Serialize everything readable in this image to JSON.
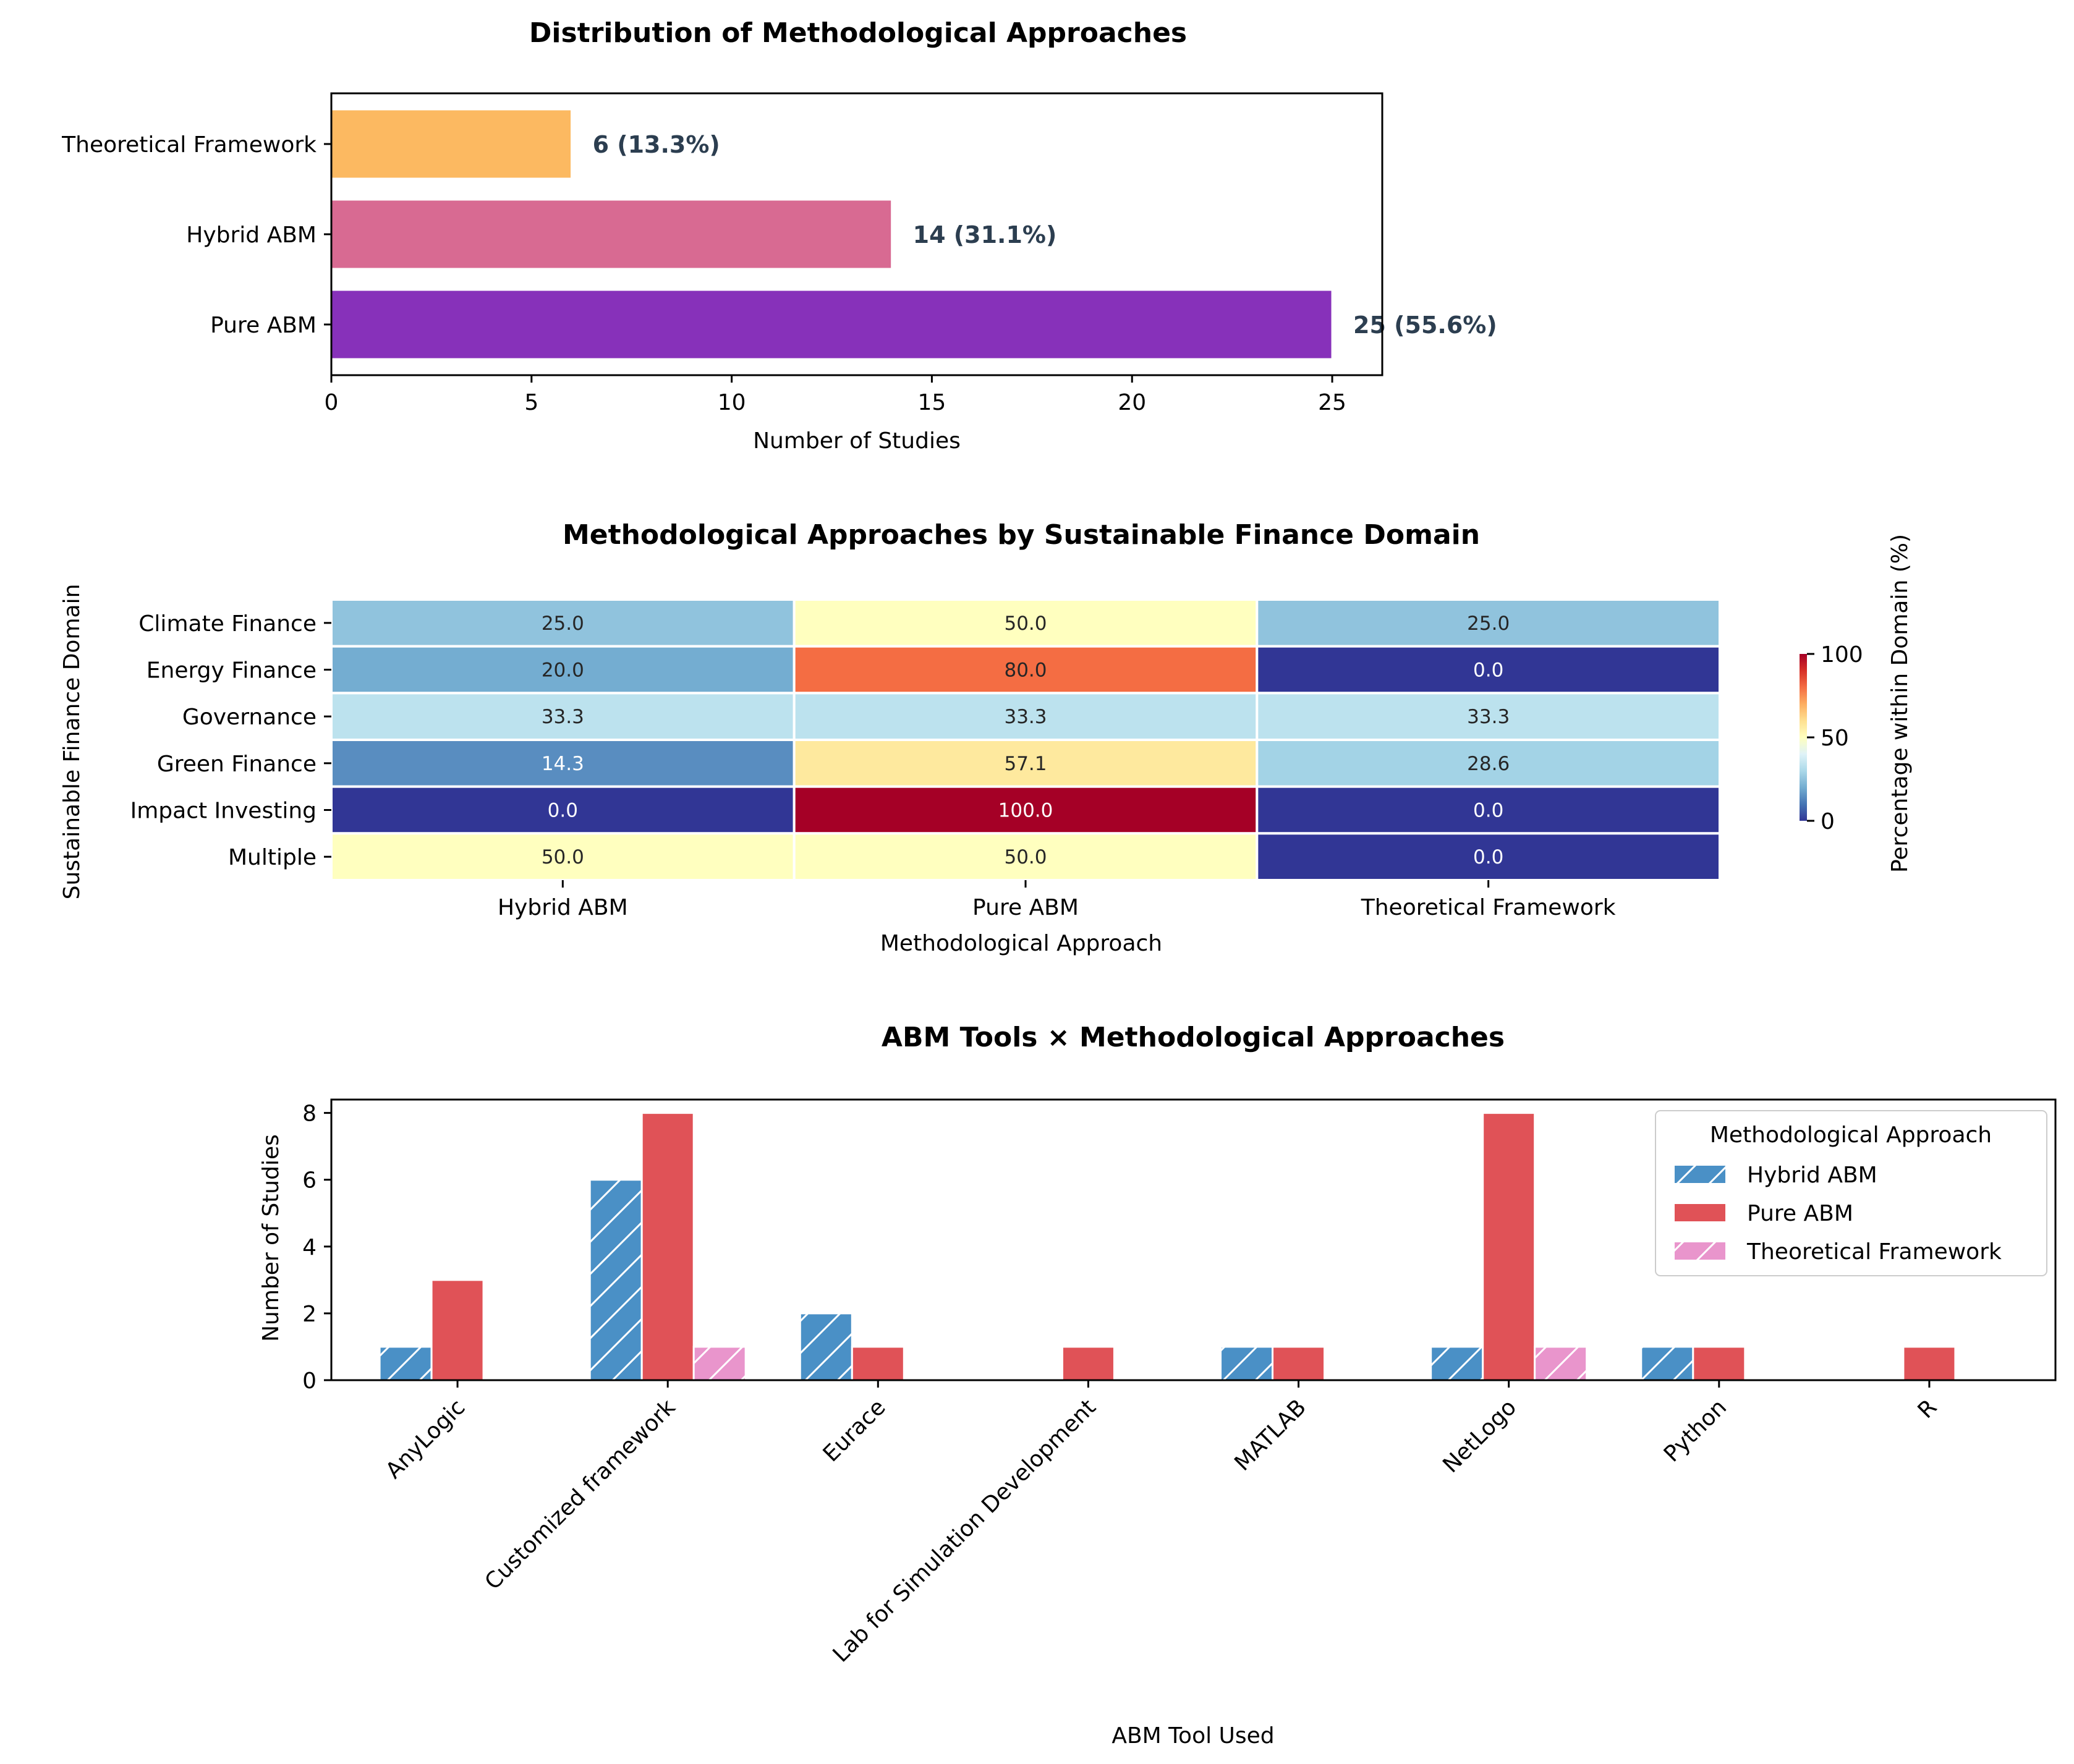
{
  "chart_data": [
    {
      "type": "bar",
      "orientation": "horizontal",
      "title": "Distribution of Methodological Approaches",
      "xlabel": "Number of Studies",
      "ylabel": "",
      "categories": [
        "Pure ABM",
        "Hybrid ABM",
        "Theoretical Framework"
      ],
      "values": [
        25,
        14,
        6
      ],
      "bar_labels": [
        "25 (55.6%)",
        "14 (31.1%)",
        "6 (13.3%)"
      ],
      "colors": [
        "#8731BA",
        "#D86A92",
        "#FCB961"
      ],
      "xlim": [
        0,
        26.25
      ],
      "xticks": [
        "0",
        "5",
        "10",
        "15",
        "20",
        "25"
      ]
    },
    {
      "type": "heatmap",
      "title": "Methodological Approaches by Sustainable Finance Domain",
      "xlabel": "Methodological Approach",
      "ylabel": "Sustainable Finance Domain",
      "x": [
        "Hybrid ABM",
        "Pure ABM",
        "Theoretical Framework"
      ],
      "y": [
        "Climate Finance",
        "Energy Finance",
        "Governance",
        "Green Finance",
        "Impact Investing",
        "Multiple"
      ],
      "values": [
        [
          25.0,
          50.0,
          25.0
        ],
        [
          20.0,
          80.0,
          0.0
        ],
        [
          33.3,
          33.3,
          33.3
        ],
        [
          14.3,
          57.1,
          28.6
        ],
        [
          0.0,
          100.0,
          0.0
        ],
        [
          50.0,
          50.0,
          0.0
        ]
      ],
      "cell_labels": [
        [
          "25.0",
          "50.0",
          "25.0"
        ],
        [
          "20.0",
          "80.0",
          "0.0"
        ],
        [
          "33.3",
          "33.3",
          "33.3"
        ],
        [
          "14.3",
          "57.1",
          "28.6"
        ],
        [
          "0.0",
          "100.0",
          "0.0"
        ],
        [
          "50.0",
          "50.0",
          "0.0"
        ]
      ],
      "colormap": "RdYlBu_r",
      "colorbar": {
        "label": "Percentage within Domain (%)",
        "range": [
          0,
          100
        ],
        "ticks": [
          "0",
          "50",
          "100"
        ]
      }
    },
    {
      "type": "bar",
      "title": "ABM Tools × Methodological Approaches",
      "xlabel": "ABM Tool Used",
      "ylabel": "Number of Studies",
      "categories": [
        "AnyLogic",
        "Customized framework",
        "Eurace",
        "Lab for Simulation Development",
        "MATLAB",
        "NetLogo",
        "Python",
        "R"
      ],
      "series": [
        {
          "name": "Hybrid ABM",
          "values": [
            1,
            6,
            2,
            0,
            1,
            1,
            1,
            0
          ],
          "color": "#4A90C6",
          "hatch": "diagonal"
        },
        {
          "name": "Pure ABM",
          "values": [
            3,
            8,
            1,
            1,
            1,
            8,
            1,
            1
          ],
          "color": "#E05257",
          "hatch": "none"
        },
        {
          "name": "Theoretical Framework",
          "values": [
            0,
            1,
            0,
            0,
            0,
            1,
            0,
            0
          ],
          "color": "#E995CC",
          "hatch": "diagonal"
        }
      ],
      "ylim": [
        0,
        8.4
      ],
      "yticks": [
        "0",
        "2",
        "4",
        "6",
        "8"
      ],
      "legend": {
        "title": "Methodological Approach",
        "placement": "top-right"
      }
    }
  ]
}
